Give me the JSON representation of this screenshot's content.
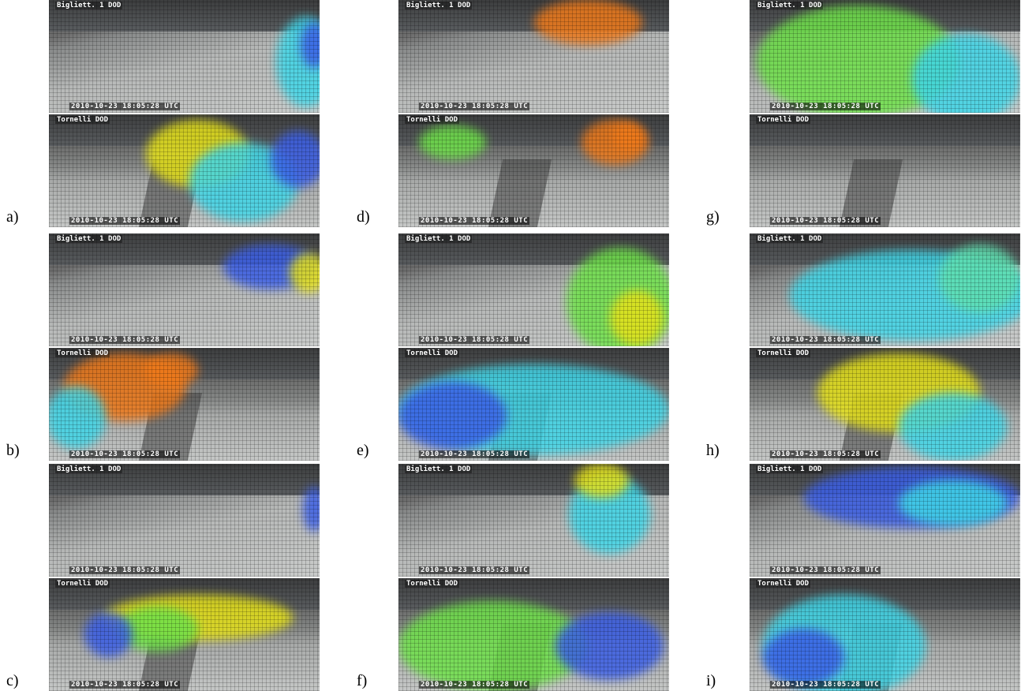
{
  "panels": [
    {
      "label": "a)",
      "views": [
        {
          "caption": "Bigliett. 1 DOD",
          "timestamp": "2010-10-23 18:05:28 UTC"
        },
        {
          "caption": "Tornelli DOD",
          "timestamp": "2010-10-23 18:05:28 UTC"
        }
      ]
    },
    {
      "label": "b)",
      "views": [
        {
          "caption": "Bigliett. 1 DOD",
          "timestamp": "2010-10-23 18:05:28 UTC"
        },
        {
          "caption": "Tornelli DOD",
          "timestamp": "2010-10-23 18:05:28 UTC"
        }
      ]
    },
    {
      "label": "c)",
      "views": [
        {
          "caption": "Bigliett. 1 DOD",
          "timestamp": "2010-10-23 18:05:28 UTC"
        },
        {
          "caption": "Tornelli DOD",
          "timestamp": "2010-10-23 18:05:28 UTC"
        }
      ]
    },
    {
      "label": "d)",
      "views": [
        {
          "caption": "Bigliett. 1 DOD",
          "timestamp": "2010-10-23 18:05:28 UTC"
        },
        {
          "caption": "Tornelli DOD",
          "timestamp": "2010-10-23 18:05:28 UTC"
        }
      ]
    },
    {
      "label": "e)",
      "views": [
        {
          "caption": "Bigliett. 1 DOD",
          "timestamp": "2010-10-23 18:05:28 UTC"
        },
        {
          "caption": "Tornelli DOD",
          "timestamp": "2010-10-23 18:05:28 UTC"
        }
      ]
    },
    {
      "label": "f)",
      "views": [
        {
          "caption": "Bigliett. 1 DOD",
          "timestamp": "2010-10-23 18:05:28 UTC"
        },
        {
          "caption": "Tornelli DOD",
          "timestamp": "2010-10-23 18:05:28 UTC"
        }
      ]
    },
    {
      "label": "g)",
      "views": [
        {
          "caption": "Bigliett. 1 DOD",
          "timestamp": "2010-10-23 18:05:28 UTC"
        },
        {
          "caption": "Tornelli DOD",
          "timestamp": "2010-10-23 18:05:28 UTC"
        }
      ]
    },
    {
      "label": "h)",
      "views": [
        {
          "caption": "Bigliett. 1 DOD",
          "timestamp": "2010-10-23 18:05:28 UTC"
        },
        {
          "caption": "Tornelli DOD",
          "timestamp": "2010-10-23 18:05:28 UTC"
        }
      ]
    },
    {
      "label": "i)",
      "views": [
        {
          "caption": "Bigliett. 1 DOD",
          "timestamp": "2010-10-23 18:05:28 UTC"
        },
        {
          "caption": "Tornelli DOD",
          "timestamp": "2010-10-23 18:05:28 UTC"
        }
      ]
    }
  ]
}
